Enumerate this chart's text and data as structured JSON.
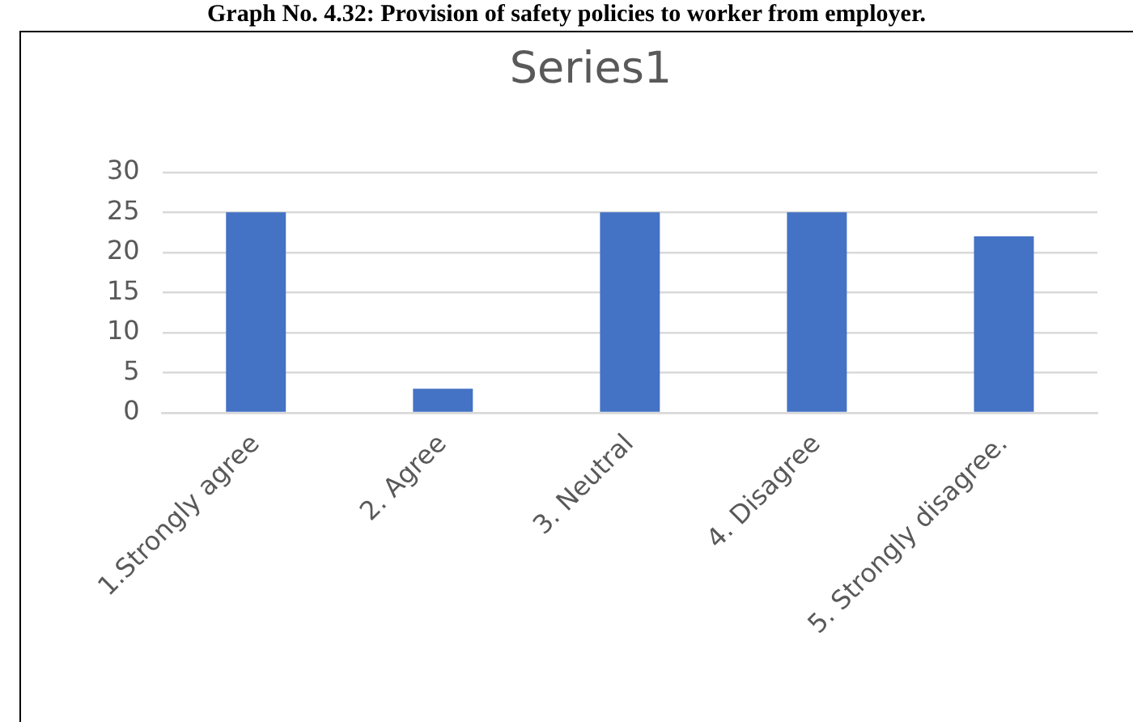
{
  "chart_data": {
    "type": "bar",
    "title": "Series1",
    "annotations": [
      "Graph No. 4.32: Provision of safety policies to worker from employer."
    ],
    "categories": [
      "1.Strongly agree",
      "2. Agree",
      "3. Neutral",
      "4. Disagree",
      "5. Strongly disagree."
    ],
    "values": [
      25,
      3,
      25,
      25,
      22
    ],
    "color": "#4472c4",
    "ylim": [
      0,
      30
    ],
    "yticks": [
      0,
      5,
      10,
      15,
      20,
      25,
      30
    ],
    "grid": "y"
  }
}
